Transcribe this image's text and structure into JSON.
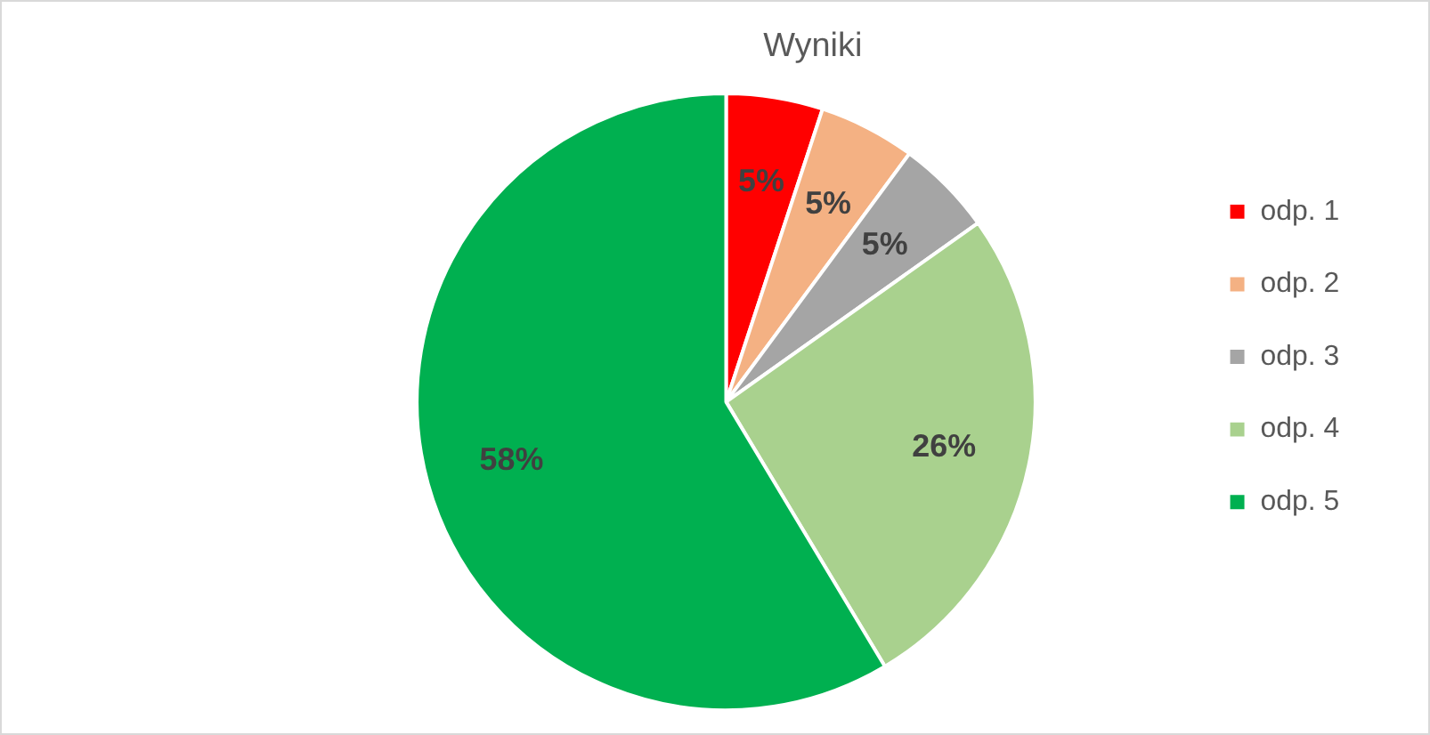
{
  "chart_data": {
    "type": "pie",
    "title": "Wyniki",
    "categories": [
      "odp. 1",
      "odp. 2",
      "odp. 3",
      "odp. 4",
      "odp. 5"
    ],
    "values": [
      5,
      5,
      5,
      26,
      58
    ],
    "colors": [
      "#ff0000",
      "#f4b183",
      "#a5a5a5",
      "#a9d18e",
      "#00b050"
    ],
    "value_labels": [
      "5%",
      "5%",
      "5%",
      "26%",
      "58%"
    ],
    "legend": "right"
  }
}
